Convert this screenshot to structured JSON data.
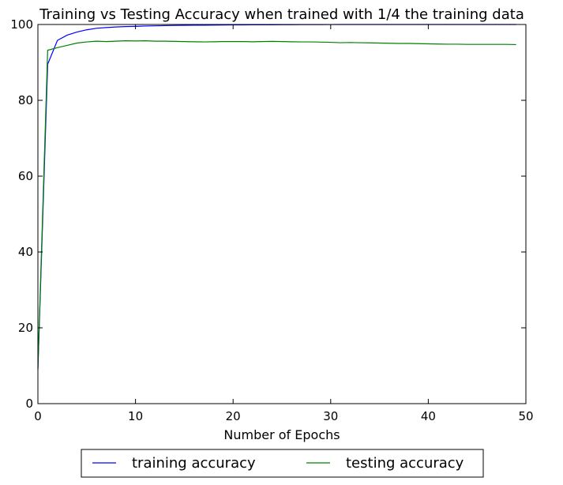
{
  "chart_data": {
    "type": "line",
    "title": "Training vs Testing Accuracy when trained with 1/4 the training data",
    "xlabel": "Number of Epochs",
    "ylabel": "",
    "xlim": [
      0,
      50
    ],
    "ylim": [
      0,
      100
    ],
    "xticks": [
      0,
      10,
      20,
      30,
      40,
      50
    ],
    "yticks": [
      0,
      20,
      40,
      60,
      80,
      100
    ],
    "grid": false,
    "legend_position": "bottom-center",
    "series": [
      {
        "name": "training accuracy",
        "color": "#0000ff",
        "x": [
          0,
          1,
          2,
          3,
          4,
          5,
          6,
          7,
          8,
          9,
          10,
          11,
          12,
          13,
          14,
          15,
          16,
          17,
          18,
          19,
          20,
          21,
          22,
          23,
          24,
          25,
          26,
          27,
          28,
          29,
          30,
          31,
          32,
          33,
          34,
          35,
          36,
          37,
          38,
          39,
          40,
          41,
          42,
          43,
          44,
          45,
          46,
          47,
          48,
          49
        ],
        "values": [
          9.0,
          89.5,
          95.8,
          97.2,
          98.0,
          98.6,
          99.0,
          99.2,
          99.35,
          99.45,
          99.5,
          99.6,
          99.65,
          99.7,
          99.75,
          99.78,
          99.8,
          99.82,
          99.85,
          99.87,
          99.88,
          99.9,
          99.91,
          99.92,
          99.93,
          99.94,
          99.95,
          99.96,
          99.97,
          99.98,
          99.99,
          100.0,
          100.0,
          100.0,
          100.0,
          100.0,
          100.0,
          100.0,
          100.0,
          100.0,
          100.0,
          100.0,
          100.0,
          100.0,
          100.0,
          100.0,
          100.0,
          100.0,
          100.0,
          100.0
        ]
      },
      {
        "name": "testing accuracy",
        "color": "#008000",
        "x": [
          0,
          1,
          2,
          3,
          4,
          5,
          6,
          7,
          8,
          9,
          10,
          11,
          12,
          13,
          14,
          15,
          16,
          17,
          18,
          19,
          20,
          21,
          22,
          23,
          24,
          25,
          26,
          27,
          28,
          29,
          30,
          31,
          32,
          33,
          34,
          35,
          36,
          37,
          38,
          39,
          40,
          41,
          42,
          43,
          44,
          45,
          46,
          47,
          48,
          49
        ],
        "values": [
          9.5,
          93.2,
          93.9,
          94.5,
          95.1,
          95.4,
          95.6,
          95.5,
          95.6,
          95.7,
          95.65,
          95.7,
          95.6,
          95.6,
          95.55,
          95.5,
          95.45,
          95.4,
          95.45,
          95.5,
          95.5,
          95.5,
          95.45,
          95.5,
          95.55,
          95.5,
          95.45,
          95.4,
          95.4,
          95.35,
          95.3,
          95.2,
          95.25,
          95.2,
          95.15,
          95.1,
          95.05,
          95.0,
          95.0,
          94.95,
          94.9,
          94.85,
          94.8,
          94.8,
          94.75,
          94.75,
          94.75,
          94.75,
          94.75,
          94.7
        ]
      }
    ]
  }
}
